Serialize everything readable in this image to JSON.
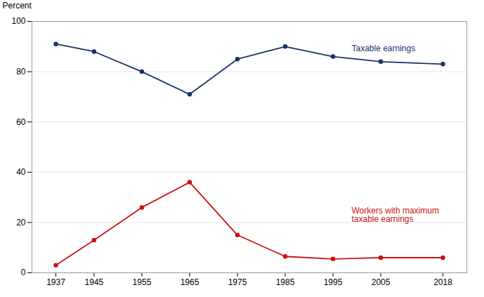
{
  "chart_data": {
    "type": "line",
    "x": [
      1937,
      1945,
      1955,
      1965,
      1975,
      1985,
      1995,
      2005,
      2018
    ],
    "series": [
      {
        "name": "Taxable earnings",
        "color": "#1a3169",
        "marker": "circle",
        "values": [
          91,
          88,
          80,
          71,
          85,
          90,
          86,
          84,
          83
        ]
      },
      {
        "name": "Workers with maximum\ntaxable earnings",
        "color": "#cc1111",
        "marker": "circle",
        "values": [
          3,
          13,
          26,
          36,
          15,
          6.5,
          5.5,
          6,
          6
        ]
      }
    ],
    "xlim": [
      1932,
      2023
    ],
    "xticks": [
      1937,
      1945,
      1955,
      1965,
      1975,
      1985,
      1995,
      2005,
      2018
    ],
    "ylim": [
      0,
      100
    ],
    "yticks": [
      0,
      20,
      40,
      60,
      80,
      100
    ],
    "ylabel": "Percent",
    "grid": true
  }
}
